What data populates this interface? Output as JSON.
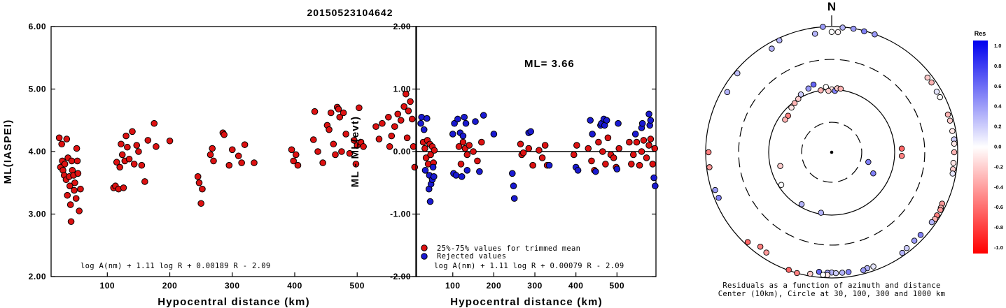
{
  "title": "20150523104642",
  "chart_data": [
    {
      "type": "scatter",
      "ylabel": "ML(IASPEI)",
      "xlabel": "Hypocentral distance (km)",
      "xlim": [
        10,
        595
      ],
      "ylim": [
        2.0,
        6.0
      ],
      "xticks": [
        "100",
        "200",
        "300",
        "400",
        "500"
      ],
      "yticks": [
        "2.00",
        "3.00",
        "4.00",
        "5.00",
        "6.00"
      ],
      "formula": "log A(nm) + 1.11 log R + 0.00189 R - 2.09",
      "marker_color": "#dd1111",
      "points": [
        [
          23,
          4.22
        ],
        [
          25,
          3.75
        ],
        [
          27,
          4.12
        ],
        [
          28,
          3.85
        ],
        [
          29,
          3.7
        ],
        [
          31,
          3.62
        ],
        [
          32,
          3.8
        ],
        [
          34,
          3.55
        ],
        [
          35,
          4.2
        ],
        [
          36,
          3.3
        ],
        [
          37,
          3.9
        ],
        [
          39,
          3.6
        ],
        [
          40,
          3.45
        ],
        [
          41,
          3.15
        ],
        [
          42,
          2.88
        ],
        [
          43,
          3.85
        ],
        [
          44,
          3.7
        ],
        [
          46,
          3.62
        ],
        [
          47,
          3.38
        ],
        [
          48,
          3.5
        ],
        [
          50,
          3.25
        ],
        [
          51,
          4.05
        ],
        [
          52,
          3.85
        ],
        [
          53,
          3.65
        ],
        [
          55,
          3.05
        ],
        [
          57,
          3.4
        ],
        [
          110,
          3.42
        ],
        [
          113,
          3.45
        ],
        [
          115,
          3.83
        ],
        [
          118,
          3.4
        ],
        [
          120,
          3.75
        ],
        [
          122,
          4.12
        ],
        [
          124,
          3.95
        ],
        [
          126,
          3.42
        ],
        [
          128,
          3.85
        ],
        [
          130,
          4.25
        ],
        [
          132,
          4.07
        ],
        [
          135,
          3.88
        ],
        [
          140,
          4.32
        ],
        [
          143,
          3.8
        ],
        [
          147,
          4.1
        ],
        [
          150,
          4.0
        ],
        [
          155,
          3.78
        ],
        [
          160,
          3.52
        ],
        [
          165,
          4.18
        ],
        [
          175,
          4.45
        ],
        [
          178,
          4.08
        ],
        [
          200,
          4.17
        ],
        [
          245,
          3.6
        ],
        [
          247,
          3.5
        ],
        [
          250,
          3.17
        ],
        [
          252,
          3.4
        ],
        [
          265,
          3.95
        ],
        [
          268,
          4.05
        ],
        [
          270,
          3.85
        ],
        [
          285,
          4.3
        ],
        [
          287,
          4.27
        ],
        [
          295,
          3.78
        ],
        [
          300,
          4.03
        ],
        [
          310,
          3.93
        ],
        [
          315,
          3.82
        ],
        [
          320,
          4.11
        ],
        [
          335,
          3.82
        ],
        [
          395,
          4.03
        ],
        [
          398,
          3.85
        ],
        [
          402,
          3.95
        ],
        [
          405,
          3.78
        ],
        [
          430,
          4.19
        ],
        [
          432,
          4.64
        ],
        [
          437,
          4.0
        ],
        [
          445,
          3.82
        ],
        [
          452,
          4.42
        ],
        [
          455,
          4.35
        ],
        [
          458,
          4.62
        ],
        [
          462,
          4.12
        ],
        [
          465,
          3.95
        ],
        [
          468,
          4.71
        ],
        [
          470,
          4.68
        ],
        [
          472,
          4.55
        ],
        [
          475,
          4.0
        ],
        [
          478,
          4.62
        ],
        [
          482,
          4.28
        ],
        [
          488,
          3.97
        ],
        [
          495,
          4.18
        ],
        [
          498,
          3.8
        ],
        [
          500,
          4.1
        ],
        [
          503,
          4.7
        ],
        [
          506,
          4.15
        ],
        [
          510,
          4.08
        ],
        [
          530,
          4.4
        ],
        [
          535,
          4.2
        ],
        [
          540,
          4.45
        ],
        [
          550,
          4.55
        ],
        [
          552,
          4.08
        ],
        [
          555,
          4.25
        ],
        [
          560,
          4.4
        ],
        [
          565,
          4.6
        ],
        [
          570,
          4.5
        ],
        [
          575,
          4.72
        ],
        [
          578,
          4.92
        ],
        [
          580,
          4.22
        ],
        [
          582,
          4.65
        ],
        [
          585,
          4.8
        ],
        [
          588,
          4.52
        ],
        [
          590,
          4.08
        ],
        [
          592,
          3.75
        ]
      ]
    },
    {
      "type": "scatter",
      "ylabel": "ML - ML(evt)",
      "xlabel": "Hypocentral distance (km)",
      "xlim": [
        10,
        595
      ],
      "ylim": [
        -2.0,
        2.0
      ],
      "xticks": [
        "100",
        "200",
        "300",
        "400",
        "500"
      ],
      "yticks": [
        "-2.00",
        "-1.00",
        "0.00",
        "1.00",
        "2.00"
      ],
      "annotation": "ML= 3.66",
      "formula": "log A(nm) + 1.11 log R + 0.00079 R - 2.09",
      "legend": [
        {
          "label": "25%-75% values for trimmed mean",
          "color": "#dd1111"
        },
        {
          "label": "Rejected values",
          "color": "#1a1ad2"
        }
      ],
      "series": [
        {
          "name": "25%-75% values for trimmed mean",
          "color": "#dd1111",
          "points": [
            [
              28,
              0.15
            ],
            [
              32,
              0.05
            ],
            [
              35,
              -0.1
            ],
            [
              38,
              0.18
            ],
            [
              40,
              -0.2
            ],
            [
              44,
              0.12
            ],
            [
              46,
              -0.05
            ],
            [
              50,
              0.08
            ],
            [
              53,
              -0.18
            ],
            [
              55,
              0.02
            ],
            [
              115,
              0.08
            ],
            [
              120,
              -0.2
            ],
            [
              125,
              0.15
            ],
            [
              130,
              0.05
            ],
            [
              135,
              -0.05
            ],
            [
              140,
              0.1
            ],
            [
              150,
              0.0
            ],
            [
              160,
              -0.15
            ],
            [
              170,
              0.15
            ],
            [
              265,
              0.12
            ],
            [
              268,
              -0.05
            ],
            [
              272,
              -0.02
            ],
            [
              285,
              0.05
            ],
            [
              295,
              -0.22
            ],
            [
              310,
              0.02
            ],
            [
              318,
              -0.1
            ],
            [
              325,
              0.1
            ],
            [
              330,
              -0.22
            ],
            [
              395,
              -0.05
            ],
            [
              402,
              0.1
            ],
            [
              430,
              0.05
            ],
            [
              438,
              -0.15
            ],
            [
              445,
              -0.3
            ],
            [
              455,
              0.15
            ],
            [
              465,
              0.0
            ],
            [
              472,
              -0.2
            ],
            [
              478,
              0.22
            ],
            [
              485,
              -0.05
            ],
            [
              492,
              -0.1
            ],
            [
              498,
              -0.25
            ],
            [
              505,
              0.05
            ],
            [
              530,
              0.15
            ],
            [
              535,
              -0.2
            ],
            [
              540,
              -0.05
            ],
            [
              548,
              0.15
            ],
            [
              555,
              -0.22
            ],
            [
              560,
              0.0
            ],
            [
              565,
              0.18
            ],
            [
              572,
              -0.1
            ],
            [
              578,
              0.1
            ],
            [
              582,
              0.2
            ],
            [
              587,
              -0.2
            ],
            [
              592,
              0.05
            ]
          ]
        },
        {
          "name": "Rejected values",
          "color": "#1a1ad2",
          "points": [
            [
              22,
              0.45
            ],
            [
              24,
              0.55
            ],
            [
              30,
              0.35
            ],
            [
              33,
              -0.3
            ],
            [
              37,
              0.53
            ],
            [
              42,
              -0.6
            ],
            [
              43,
              -0.38
            ],
            [
              45,
              -0.8
            ],
            [
              47,
              -0.52
            ],
            [
              50,
              -0.45
            ],
            [
              52,
              -0.25
            ],
            [
              54,
              -0.4
            ],
            [
              100,
              0.28
            ],
            [
              102,
              -0.35
            ],
            [
              104,
              0.45
            ],
            [
              108,
              -0.38
            ],
            [
              112,
              0.52
            ],
            [
              118,
              0.3
            ],
            [
              122,
              -0.4
            ],
            [
              125,
              0.25
            ],
            [
              128,
              0.55
            ],
            [
              132,
              0.45
            ],
            [
              135,
              -0.3
            ],
            [
              155,
              0.48
            ],
            [
              165,
              -0.32
            ],
            [
              175,
              0.58
            ],
            [
              200,
              0.28
            ],
            [
              245,
              -0.35
            ],
            [
              248,
              -0.55
            ],
            [
              250,
              -0.75
            ],
            [
              285,
              0.3
            ],
            [
              290,
              0.32
            ],
            [
              335,
              -0.22
            ],
            [
              400,
              -0.25
            ],
            [
              405,
              -0.3
            ],
            [
              435,
              0.5
            ],
            [
              440,
              0.28
            ],
            [
              448,
              -0.32
            ],
            [
              460,
              0.42
            ],
            [
              462,
              0.45
            ],
            [
              468,
              0.52
            ],
            [
              470,
              0.42
            ],
            [
              475,
              0.5
            ],
            [
              500,
              -0.28
            ],
            [
              503,
              0.45
            ],
            [
              545,
              0.28
            ],
            [
              560,
              0.38
            ],
            [
              562,
              0.45
            ],
            [
              578,
              0.6
            ],
            [
              580,
              0.42
            ],
            [
              582,
              0.5
            ],
            [
              590,
              -0.42
            ],
            [
              593,
              -0.55
            ]
          ]
        }
      ]
    },
    {
      "type": "polar-scatter",
      "north_label": "N",
      "caption": [
        "Residuals as a function of azimuth and distance",
        "Center (10km), Circle at 30, 100, 300 and 1000 km"
      ],
      "ring_distances_km": [
        30,
        100,
        300,
        1000
      ],
      "colorbar": {
        "title": "Res",
        "ticks": [
          "1.0",
          "0.8",
          "0.6",
          "0.4",
          "0.2",
          "0.0",
          "-0.2",
          "-0.4",
          "-0.6",
          "-0.8",
          "-1.0"
        ],
        "min_color": "#ff0000",
        "zero_color": "#ffffff",
        "max_color": "#0000ee"
      },
      "points": [
        [
          356,
          1000,
          0.4
        ],
        [
          5,
          980,
          0.3
        ],
        [
          10,
          990,
          0.4
        ],
        [
          15,
          980,
          0.5
        ],
        [
          20,
          990,
          0.4
        ],
        [
          352,
          800,
          0.3
        ],
        [
          0,
          820,
          0.0
        ],
        [
          3,
          820,
          -0.05
        ],
        [
          335,
          920,
          0.3
        ],
        [
          330,
          800,
          0.3
        ],
        [
          310,
          900,
          0.25
        ],
        [
          300,
          820,
          0.3
        ],
        [
          270,
          900,
          -0.5
        ],
        [
          263,
          900,
          -0.4
        ],
        [
          52,
          850,
          -0.2
        ],
        [
          55,
          860,
          -0.3
        ],
        [
          60,
          840,
          0.1
        ],
        [
          63,
          850,
          0.0
        ],
        [
          72,
          870,
          -0.3
        ],
        [
          75,
          880,
          -0.2
        ],
        [
          80,
          880,
          -0.1
        ],
        [
          84,
          900,
          0.2
        ],
        [
          86,
          890,
          -0.1
        ],
        [
          90,
          880,
          -0.3
        ],
        [
          95,
          870,
          -0.1
        ],
        [
          98,
          880,
          -0.2
        ],
        [
          100,
          890,
          0.1
        ],
        [
          115,
          860,
          -0.4
        ],
        [
          117,
          880,
          -0.3
        ],
        [
          118,
          900,
          -0.4
        ],
        [
          121,
          890,
          -0.5
        ],
        [
          123,
          900,
          -0.3
        ],
        [
          125,
          870,
          0.3
        ],
        [
          133,
          850,
          0.5
        ],
        [
          137,
          840,
          0.4
        ],
        [
          142,
          860,
          0.2
        ],
        [
          145,
          900,
          0.3
        ],
        [
          160,
          860,
          0.1
        ],
        [
          163,
          850,
          0.3
        ],
        [
          165,
          880,
          0.4
        ],
        [
          180,
          820,
          0.3
        ],
        [
          172,
          840,
          0.5
        ],
        [
          175,
          840,
          0.3
        ],
        [
          178,
          840,
          0.2
        ],
        [
          182,
          830,
          0.4
        ],
        [
          186,
          820,
          0.6
        ],
        [
          182,
          900,
          -0.1
        ],
        [
          184,
          900,
          0.0
        ],
        [
          190,
          920,
          -0.2
        ],
        [
          196,
          1000,
          -0.5
        ],
        [
          200,
          980,
          -0.6
        ],
        [
          213,
          800,
          -0.4
        ],
        [
          217,
          760,
          -0.5
        ],
        [
          223,
          900,
          -0.6
        ],
        [
          248,
          860,
          0.5
        ],
        [
          252,
          880,
          0.4
        ],
        [
          345,
          130,
          0.6
        ],
        [
          340,
          120,
          0.4
        ],
        [
          332,
          110,
          0.2
        ],
        [
          328,
          100,
          -0.2
        ],
        [
          323,
          95,
          -0.3
        ],
        [
          318,
          90,
          -0.1
        ],
        [
          310,
          80,
          -0.5
        ],
        [
          305,
          80,
          -0.3
        ],
        [
          350,
          100,
          -0.3
        ],
        [
          355,
          110,
          0.0
        ],
        [
          0,
          100,
          -0.1
        ],
        [
          3,
          95,
          0.5
        ],
        [
          357,
          95,
          -0.2
        ],
        [
          5,
          105,
          -0.2
        ],
        [
          8,
          105,
          -0.3
        ],
        [
          87,
          130,
          -0.6
        ],
        [
          93,
          130,
          -0.5
        ],
        [
          105,
          40,
          0.5
        ],
        [
          117,
          55,
          0.5
        ],
        [
          190,
          95,
          0.3
        ],
        [
          210,
          90,
          0.3
        ],
        [
          237,
          90,
          0.0
        ],
        [
          255,
          70,
          -0.2
        ]
      ]
    }
  ]
}
